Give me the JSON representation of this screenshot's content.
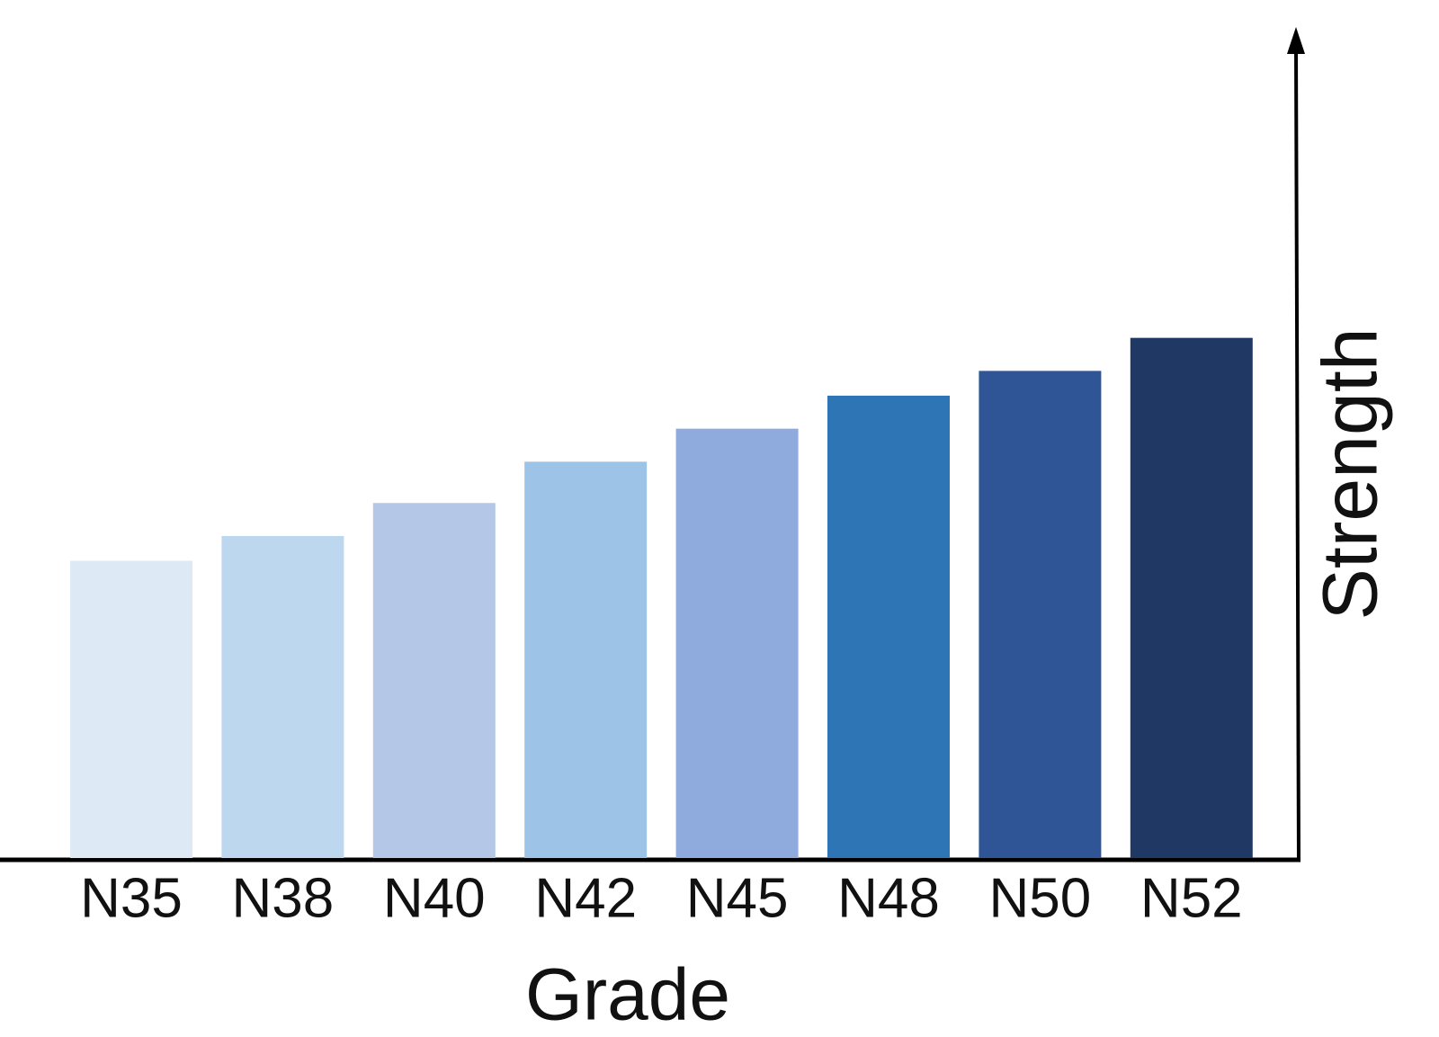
{
  "chart_data": {
    "type": "bar",
    "x_label": "Grade",
    "y_label": "Strength",
    "categories": [
      "N35",
      "N38",
      "N40",
      "N42",
      "N45",
      "N48",
      "N50",
      "N52"
    ],
    "values": [
      36,
      39,
      43,
      48,
      52,
      56,
      59,
      63
    ],
    "colors": [
      "#dde9f5",
      "#bdd7ee",
      "#b4c7e7",
      "#9dc3e6",
      "#8faadc",
      "#2e75b6",
      "#2f5597",
      "#203864"
    ],
    "ylim": [
      0,
      100
    ]
  }
}
